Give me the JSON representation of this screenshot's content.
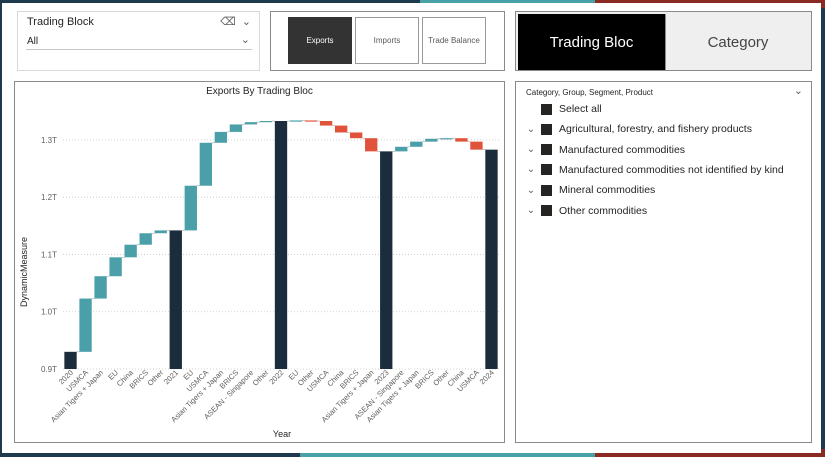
{
  "colors": {
    "bg_dark": "#1e3a4c",
    "bg_teal": "#49a1a8",
    "bg_red": "#8b2a23",
    "total": "#1b2d3c",
    "increase": "#4a9fa8",
    "decrease": "#e0533a"
  },
  "slicer": {
    "title": "Trading Block",
    "value": "All",
    "eraser_icon": "eraser-icon",
    "chevron_icon": "chevron-down-icon"
  },
  "measure_buttons": [
    {
      "label": "Exports",
      "active": true
    },
    {
      "label": "Imports",
      "active": false
    },
    {
      "label": "Trade Balance",
      "active": false
    }
  ],
  "toggle": {
    "left": "Trading Bloc",
    "right": "Category"
  },
  "category_slicer": {
    "title": "Category, Group, Segment, Product",
    "items": [
      {
        "label": "Select all",
        "expandable": false
      },
      {
        "label": "Agricultural, forestry, and fishery products",
        "expandable": true
      },
      {
        "label": "Manufactured commodities",
        "expandable": true
      },
      {
        "label": "Manufactured commodities not identified by kind",
        "expandable": true
      },
      {
        "label": "Mineral commodities",
        "expandable": true
      },
      {
        "label": "Other commodities",
        "expandable": true
      }
    ]
  },
  "chart_data": {
    "type": "waterfall",
    "title": "Exports By Trading Bloc",
    "xlabel": "Year",
    "ylabel": "DynamicMeasure",
    "ylim": [
      0.9,
      1.34
    ],
    "yticks": [
      0.9,
      1.0,
      1.1,
      1.2,
      1.3
    ],
    "ytick_labels": [
      "0.9T",
      "1.0T",
      "1.1T",
      "1.2T",
      "1.3T"
    ],
    "bars": [
      {
        "label": "2020",
        "type": "total",
        "end": 0.93
      },
      {
        "label": "USMCA",
        "type": "increase",
        "start": 0.93,
        "end": 1.023
      },
      {
        "label": "Asian Tigers + Japan",
        "type": "increase",
        "start": 1.023,
        "end": 1.062
      },
      {
        "label": "EU",
        "type": "increase",
        "start": 1.062,
        "end": 1.095
      },
      {
        "label": "China",
        "type": "increase",
        "start": 1.095,
        "end": 1.117
      },
      {
        "label": "BRICS",
        "type": "increase",
        "start": 1.117,
        "end": 1.137
      },
      {
        "label": "Other",
        "type": "increase",
        "start": 1.137,
        "end": 1.142
      },
      {
        "label": "2021",
        "type": "total",
        "end": 1.142
      },
      {
        "label": "EU",
        "type": "increase",
        "start": 1.142,
        "end": 1.22
      },
      {
        "label": "USMCA",
        "type": "increase",
        "start": 1.22,
        "end": 1.295
      },
      {
        "label": "Asian Tigers + Japan",
        "type": "increase",
        "start": 1.295,
        "end": 1.314
      },
      {
        "label": "BRICS",
        "type": "increase",
        "start": 1.314,
        "end": 1.327
      },
      {
        "label": "ASEAN - Singapore",
        "type": "increase",
        "start": 1.327,
        "end": 1.331
      },
      {
        "label": "Other",
        "type": "increase",
        "start": 1.331,
        "end": 1.333
      },
      {
        "label": "2022",
        "type": "total",
        "end": 1.333
      },
      {
        "label": "EU",
        "type": "increase",
        "start": 1.333,
        "end": 1.334
      },
      {
        "label": "Other",
        "type": "decrease",
        "start": 1.334,
        "end": 1.333
      },
      {
        "label": "USMCA",
        "type": "decrease",
        "start": 1.333,
        "end": 1.325
      },
      {
        "label": "China",
        "type": "decrease",
        "start": 1.325,
        "end": 1.313
      },
      {
        "label": "BRICS",
        "type": "decrease",
        "start": 1.313,
        "end": 1.303
      },
      {
        "label": "Asian Tigers + Japan",
        "type": "decrease",
        "start": 1.303,
        "end": 1.28
      },
      {
        "label": "2023",
        "type": "total",
        "end": 1.28
      },
      {
        "label": "ASEAN - Singapore",
        "type": "increase",
        "start": 1.28,
        "end": 1.288
      },
      {
        "label": "Asian Tigers + Japan",
        "type": "increase",
        "start": 1.288,
        "end": 1.297
      },
      {
        "label": "BRICS",
        "type": "increase",
        "start": 1.297,
        "end": 1.302
      },
      {
        "label": "Other",
        "type": "increase",
        "start": 1.302,
        "end": 1.303
      },
      {
        "label": "China",
        "type": "decrease",
        "start": 1.303,
        "end": 1.297
      },
      {
        "label": "USMCA",
        "type": "decrease",
        "start": 1.297,
        "end": 1.283
      },
      {
        "label": "2024",
        "type": "total",
        "end": 1.283
      }
    ]
  }
}
